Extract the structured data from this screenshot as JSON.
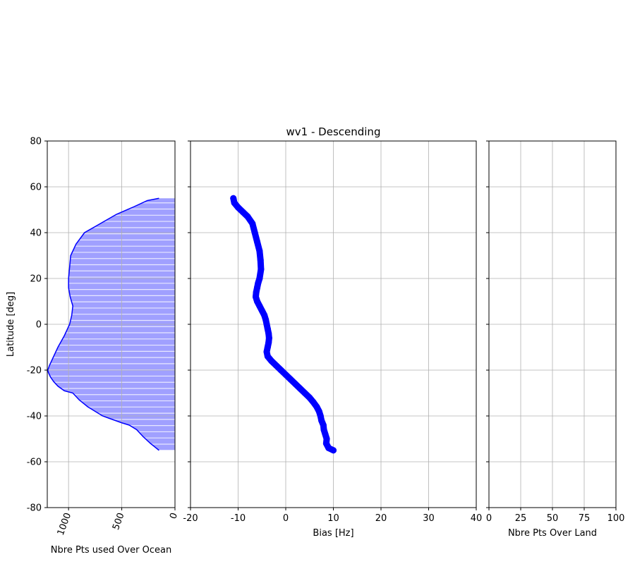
{
  "chart_data": [
    {
      "type": "area",
      "ylabel": "Latitude [deg]",
      "xlabel": "Nbre Pts used Over Ocean",
      "xlim": [
        1200,
        0
      ],
      "ylim": [
        -80,
        80
      ],
      "xticks": [
        1000,
        500,
        0
      ],
      "yticks": [
        -80,
        -60,
        -40,
        -20,
        0,
        20,
        40,
        60,
        80
      ],
      "xtick_rotation": 70,
      "grid": true,
      "line_color": "#0000ff",
      "fill_color": "#a0a0ff",
      "series": [
        {
          "x": [
            150,
            230,
            300,
            360,
            430,
            500,
            560,
            620,
            680,
            750,
            820,
            900,
            960,
            1040,
            1100,
            1140,
            1170,
            1190,
            1195,
            1180,
            1150,
            1100,
            1040,
            990,
            970,
            960,
            985,
            1000,
            1000,
            990,
            980,
            930,
            850,
            700,
            550,
            400,
            260,
            150
          ],
          "y": [
            -55,
            -52,
            -49,
            -46,
            -44,
            -43,
            -42,
            -41,
            -40,
            -38,
            -36,
            -33,
            -30,
            -29,
            -27,
            -25,
            -23,
            -21,
            -20,
            -18,
            -15,
            -10,
            -5,
            0,
            4,
            8,
            12,
            16,
            20,
            25,
            30,
            35,
            40,
            44,
            48,
            51,
            54,
            55
          ]
        }
      ]
    },
    {
      "type": "scatter",
      "title": "wv1 - Descending",
      "xlabel": "Bias [Hz]",
      "xlim": [
        -20,
        40
      ],
      "ylim": [
        -80,
        80
      ],
      "xticks": [
        -20,
        -10,
        0,
        10,
        20,
        30,
        40
      ],
      "yticks": [
        -80,
        -60,
        -40,
        -20,
        0,
        20,
        40,
        60,
        80
      ],
      "grid": true,
      "marker_color": "#0000ff",
      "series": [
        {
          "x": [
            10.0,
            9.0,
            8.5,
            8.6,
            8.3,
            8.0,
            7.9,
            7.5,
            7.3,
            7.0,
            6.5,
            5.8,
            5.0,
            4.0,
            3.0,
            2.0,
            1.0,
            0.0,
            -1.0,
            -2.0,
            -3.0,
            -3.8,
            -4.0,
            -3.8,
            -3.6,
            -3.5,
            -3.6,
            -3.8,
            -4.0,
            -4.2,
            -4.5,
            -5.0,
            -5.5,
            -6.0,
            -6.3,
            -6.2,
            -6.0,
            -5.8,
            -5.5,
            -5.2,
            -5.3,
            -5.5,
            -6.0,
            -6.5,
            -7.0,
            -8.0,
            -9.0,
            -10.0,
            -10.8,
            -11.0
          ],
          "y": [
            -55,
            -54,
            -52,
            -50,
            -48,
            -46,
            -44,
            -42,
            -40,
            -38,
            -36,
            -34,
            -32,
            -30,
            -28,
            -26,
            -24,
            -22,
            -20,
            -18,
            -16,
            -14,
            -12,
            -10,
            -8,
            -6,
            -4,
            -2,
            0,
            2,
            4,
            6,
            8,
            10,
            12,
            14,
            16,
            18,
            20,
            24,
            28,
            32,
            36,
            40,
            44,
            47,
            49,
            51,
            53,
            55
          ]
        }
      ]
    },
    {
      "type": "line",
      "xlabel": "Nbre Pts Over Land",
      "xlim": [
        0,
        100
      ],
      "ylim": [
        -80,
        80
      ],
      "xticks": [
        0,
        25,
        50,
        75,
        100
      ],
      "yticks": [
        -80,
        -60,
        -40,
        -20,
        0,
        20,
        40,
        60,
        80
      ],
      "grid": true,
      "series": []
    }
  ]
}
